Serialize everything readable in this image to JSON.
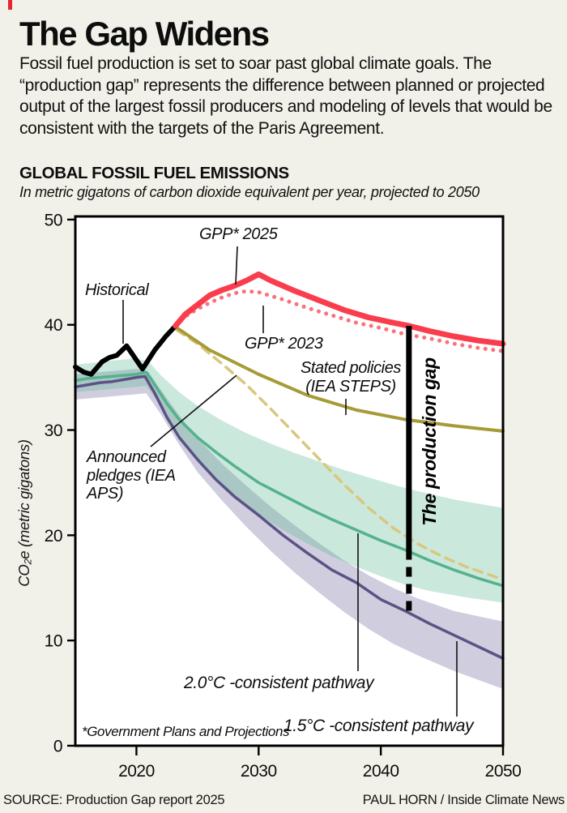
{
  "page": {
    "background": "#f2f1e9",
    "accent_color": "#e8252e",
    "title": "The Gap Widens",
    "intro": "Fossil fuel production is set to soar past global climate goals. The “production gap” represents the difference between planned or projected output of the largest fossil producers and modeling of levels that would be consistent with the targets of the Paris Agreement.",
    "section_title": "GLOBAL FOSSIL FUEL EMISSIONS",
    "section_subtitle": "In metric gigatons of carbon dioxide equivalent per year, projected to 2050",
    "footer_left": "SOURCE: Production Gap report 2025",
    "footer_right": "PAUL HORN / Inside Climate News"
  },
  "chart_data": {
    "type": "line",
    "title": "GLOBAL FOSSIL FUEL EMISSIONS",
    "subtitle": "In metric gigatons of carbon dioxide equivalent per year, projected to 2050",
    "xlabel": "",
    "ylabel": "CO₂e (metric gigatons)",
    "x_range": [
      2015,
      2050
    ],
    "y_range": [
      0,
      50.3
    ],
    "x_ticks": [
      2020,
      2030,
      2040,
      2050
    ],
    "y_ticks": [
      0,
      10,
      20,
      30,
      40,
      50
    ],
    "grid": false,
    "plot_background": "#ffffff",
    "annotations": {
      "historical": "Historical",
      "gpp2025": "GPP* 2025",
      "gpp2023": "GPP* 2023",
      "steps": "Stated policies (IEA STEPS)",
      "aps": "Announced pledges (IEA APS)",
      "gap": "The production gap",
      "twodeg": "2.0°C -consistent pathway",
      "onefive": "1.5°C -consistent pathway",
      "footnote": "*Government Plans and Projections"
    },
    "bands": [
      {
        "name": "1.5C-uncertainty-band",
        "color": "rgba(100,92,145,0.30)",
        "upper": [
          [
            2015,
            35.3
          ],
          [
            2018,
            35.6
          ],
          [
            2020,
            35.8
          ],
          [
            2021,
            35.5
          ],
          [
            2022,
            33.8
          ],
          [
            2023.5,
            31.4
          ],
          [
            2025,
            29.2
          ],
          [
            2027,
            26.8
          ],
          [
            2029,
            24.7
          ],
          [
            2031,
            22.7
          ],
          [
            2033,
            20.9
          ],
          [
            2035,
            19.2
          ],
          [
            2037,
            17.6
          ],
          [
            2039,
            16.2
          ],
          [
            2041,
            15.0
          ],
          [
            2043,
            14.0
          ],
          [
            2046,
            12.8
          ],
          [
            2050,
            11.8
          ]
        ],
        "lower": [
          [
            2015,
            32.9
          ],
          [
            2018,
            33.2
          ],
          [
            2020,
            33.4
          ],
          [
            2020.8,
            33.5
          ],
          [
            2022,
            31.5
          ],
          [
            2023.5,
            28.6
          ],
          [
            2025,
            26.0
          ],
          [
            2027,
            23.3
          ],
          [
            2029,
            20.8
          ],
          [
            2031,
            18.5
          ],
          [
            2033,
            16.4
          ],
          [
            2035,
            14.5
          ],
          [
            2037,
            12.7
          ],
          [
            2039,
            11.1
          ],
          [
            2041,
            9.7
          ],
          [
            2043,
            8.6
          ],
          [
            2046,
            7.1
          ],
          [
            2050,
            5.4
          ]
        ]
      },
      {
        "name": "2.0C-uncertainty-band",
        "color": "rgba(84,178,140,0.30)",
        "upper": [
          [
            2015,
            36.2
          ],
          [
            2018,
            36.6
          ],
          [
            2020,
            36.8
          ],
          [
            2021,
            36.5
          ],
          [
            2022,
            35.2
          ],
          [
            2023.5,
            33.6
          ],
          [
            2025,
            32.3
          ],
          [
            2027,
            30.9
          ],
          [
            2029,
            29.7
          ],
          [
            2031,
            28.7
          ],
          [
            2033,
            27.8
          ],
          [
            2035,
            27.0
          ],
          [
            2037,
            26.2
          ],
          [
            2039,
            25.5
          ],
          [
            2041,
            24.8
          ],
          [
            2043,
            24.2
          ],
          [
            2046,
            23.4
          ],
          [
            2050,
            22.6
          ]
        ],
        "lower": [
          [
            2015,
            33.6
          ],
          [
            2018,
            33.9
          ],
          [
            2020,
            34.1
          ],
          [
            2020.8,
            34.2
          ],
          [
            2021.8,
            32.6
          ],
          [
            2023,
            30.3
          ],
          [
            2024.5,
            28.0
          ],
          [
            2026,
            25.9
          ],
          [
            2028,
            23.8
          ],
          [
            2030,
            22.0
          ],
          [
            2032,
            20.5
          ],
          [
            2034,
            19.2
          ],
          [
            2036,
            18.0
          ],
          [
            2038,
            17.0
          ],
          [
            2040,
            16.1
          ],
          [
            2042,
            15.3
          ],
          [
            2044,
            14.7
          ],
          [
            2047,
            14.1
          ],
          [
            2050,
            13.6
          ]
        ]
      }
    ],
    "series": [
      {
        "name": "Announced pledges (IEA APS)",
        "color": "#d9c77e",
        "width": 3.5,
        "style": "dashed",
        "points": [
          [
            2023.3,
            39.5
          ],
          [
            2025,
            38.2
          ],
          [
            2027,
            36.3
          ],
          [
            2029,
            34.3
          ],
          [
            2031,
            32.0
          ],
          [
            2033,
            29.6
          ],
          [
            2035,
            27.2
          ],
          [
            2037,
            24.8
          ],
          [
            2039,
            22.6
          ],
          [
            2041,
            20.7
          ],
          [
            2043,
            19.2
          ],
          [
            2045,
            18.0
          ],
          [
            2047,
            17.0
          ],
          [
            2050,
            15.8
          ]
        ]
      },
      {
        "name": "Stated policies (IEA STEPS)",
        "color": "#a69b37",
        "width": 4,
        "style": "solid",
        "points": [
          [
            2023.2,
            39.8
          ],
          [
            2026,
            37.6
          ],
          [
            2030,
            35.3
          ],
          [
            2034,
            33.3
          ],
          [
            2038,
            31.9
          ],
          [
            2042,
            31.0
          ],
          [
            2046,
            30.4
          ],
          [
            2050,
            29.9
          ]
        ]
      },
      {
        "name": "GPP* 2023",
        "color": "#f9727c",
        "width": 5,
        "style": "dotted",
        "points": [
          [
            2023.2,
            39.9
          ],
          [
            2024,
            40.8
          ],
          [
            2025,
            41.5
          ],
          [
            2026,
            42.1
          ],
          [
            2027,
            42.6
          ],
          [
            2028,
            43.0
          ],
          [
            2029,
            43.2
          ],
          [
            2030,
            43.1
          ],
          [
            2032,
            42.4
          ],
          [
            2034,
            41.6
          ],
          [
            2036,
            40.9
          ],
          [
            2038,
            40.2
          ],
          [
            2040,
            39.7
          ],
          [
            2042,
            39.1
          ],
          [
            2044,
            38.7
          ],
          [
            2046,
            38.2
          ],
          [
            2048,
            37.8
          ],
          [
            2050,
            37.5
          ]
        ]
      },
      {
        "name": "1.5°C -consistent pathway",
        "color": "#5a5385",
        "width": 3.5,
        "style": "solid",
        "points": [
          [
            2015,
            34.1
          ],
          [
            2016,
            34.3
          ],
          [
            2017,
            34.5
          ],
          [
            2018,
            34.6
          ],
          [
            2019,
            34.8
          ],
          [
            2020,
            35.0
          ],
          [
            2020.7,
            35.1
          ],
          [
            2021.5,
            33.5
          ],
          [
            2022.5,
            31.2
          ],
          [
            2023.5,
            29.3
          ],
          [
            2025,
            27.2
          ],
          [
            2026.5,
            25.3
          ],
          [
            2028,
            23.7
          ],
          [
            2030,
            21.9
          ],
          [
            2032,
            20.0
          ],
          [
            2034,
            18.3
          ],
          [
            2036,
            16.7
          ],
          [
            2038,
            15.5
          ],
          [
            2040,
            13.9
          ],
          [
            2042,
            12.8
          ],
          [
            2044,
            11.6
          ],
          [
            2046,
            10.5
          ],
          [
            2048,
            9.4
          ],
          [
            2050,
            8.3
          ]
        ]
      },
      {
        "name": "2.0°C -consistent pathway",
        "color": "#54b28c",
        "width": 3.5,
        "style": "solid",
        "points": [
          [
            2015,
            34.7
          ],
          [
            2016,
            34.9
          ],
          [
            2017,
            35.0
          ],
          [
            2018,
            35.1
          ],
          [
            2019,
            35.2
          ],
          [
            2020,
            35.3
          ],
          [
            2020.8,
            35.5
          ],
          [
            2021.5,
            34.3
          ],
          [
            2022.5,
            32.5
          ],
          [
            2023.5,
            31.0
          ],
          [
            2025,
            29.3
          ],
          [
            2026.5,
            27.9
          ],
          [
            2028,
            26.6
          ],
          [
            2030,
            25.0
          ],
          [
            2032,
            23.8
          ],
          [
            2034,
            22.6
          ],
          [
            2036,
            21.5
          ],
          [
            2038,
            20.5
          ],
          [
            2040,
            19.5
          ],
          [
            2042,
            18.6
          ],
          [
            2044,
            17.6
          ],
          [
            2046,
            16.7
          ],
          [
            2048,
            15.9
          ],
          [
            2050,
            15.2
          ]
        ]
      },
      {
        "name": "Historical",
        "color": "#000000",
        "width": 6,
        "style": "solid",
        "points": [
          [
            2015,
            36.0
          ],
          [
            2015.7,
            35.5
          ],
          [
            2016.3,
            35.3
          ],
          [
            2017.2,
            36.5
          ],
          [
            2017.8,
            36.9
          ],
          [
            2018.4,
            37.1
          ],
          [
            2019.2,
            38.0
          ],
          [
            2020.5,
            35.8
          ],
          [
            2021.5,
            37.6
          ],
          [
            2022.4,
            38.9
          ],
          [
            2023.2,
            39.9
          ]
        ]
      },
      {
        "name": "GPP* 2025",
        "color": "#fa3d4d",
        "width": 7,
        "style": "solid",
        "points": [
          [
            2023.2,
            39.9
          ],
          [
            2024,
            41.0
          ],
          [
            2025,
            41.9
          ],
          [
            2026,
            42.8
          ],
          [
            2027,
            43.3
          ],
          [
            2028,
            43.7
          ],
          [
            2029,
            44.2
          ],
          [
            2030,
            44.8
          ],
          [
            2031,
            44.2
          ],
          [
            2033,
            43.2
          ],
          [
            2035,
            42.3
          ],
          [
            2037,
            41.4
          ],
          [
            2039,
            40.7
          ],
          [
            2041,
            40.2
          ],
          [
            2042.3,
            39.9
          ],
          [
            2044,
            39.4
          ],
          [
            2046,
            38.9
          ],
          [
            2048,
            38.5
          ],
          [
            2050,
            38.2
          ]
        ]
      }
    ],
    "gap_marker": {
      "x": 2042.3,
      "solid_from": 39.9,
      "solid_to": 18.6,
      "dashed_to": 12.7
    }
  }
}
